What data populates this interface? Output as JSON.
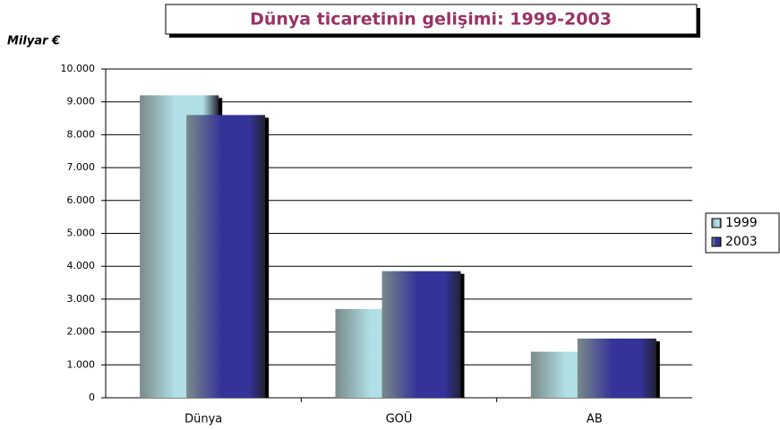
{
  "chart_data": {
    "type": "bar",
    "title": "Dünya ticaretinin gelişimi: 1999-2003",
    "y_label": "Milyar €",
    "categories": [
      "Dünya",
      "GOÜ",
      "AB"
    ],
    "series": [
      {
        "name": "1999",
        "color": "#b0e0e6",
        "values": [
          9200,
          2700,
          1400
        ]
      },
      {
        "name": "2003",
        "color": "#333399",
        "values": [
          8600,
          3850,
          1800
        ]
      }
    ],
    "ylim": [
      0,
      10000
    ],
    "yticks": [
      0,
      {
        "value": 1000,
        "label": "1.000"
      },
      {
        "value": 2000,
        "label": "2.000"
      },
      {
        "value": 3000,
        "label": "3.000"
      },
      {
        "value": 4000,
        "label": "4.000"
      },
      {
        "value": 5000,
        "label": "5.000"
      },
      {
        "value": 6000,
        "label": "6.000"
      },
      {
        "value": 7000,
        "label": "7.000"
      },
      {
        "value": 8000,
        "label": "8.000"
      },
      {
        "value": 9000,
        "label": "9.000"
      },
      {
        "value": 10000,
        "label": "10.000"
      }
    ],
    "grid": true,
    "legend": "right"
  }
}
